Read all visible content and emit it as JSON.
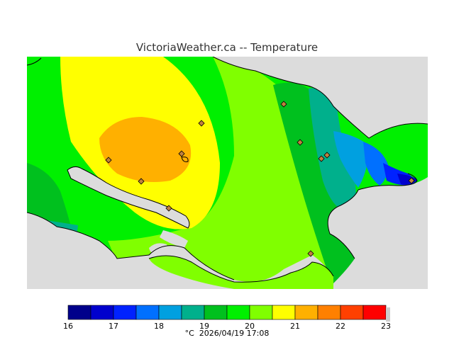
{
  "title": "VictoriaWeather.ca -- Temperature",
  "legend": {
    "unit": "°C",
    "datetime": "2026/04/19 17:08",
    "ticks": [
      "16",
      "17",
      "18",
      "19",
      "20",
      "21",
      "22",
      "23"
    ],
    "colors": [
      "#00008b",
      "#0000cd",
      "#0022ff",
      "#0070ff",
      "#00a0e0",
      "#00b08c",
      "#00c01e",
      "#00f000",
      "#80ff00",
      "#ffff00",
      "#ffb000",
      "#ff8000",
      "#ff4000",
      "#ff0000"
    ]
  },
  "map": {
    "land_background": "#7cfc00",
    "sea_color": "#dcdcdc",
    "stations_count": 10
  }
}
